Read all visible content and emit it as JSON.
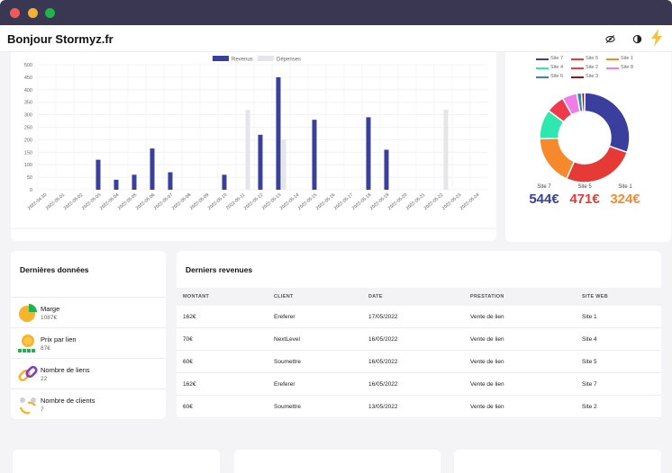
{
  "window": {
    "controls": [
      "close",
      "minimize",
      "maximize"
    ]
  },
  "header": {
    "greeting": "Bonjour Stormyz.fr",
    "icons": [
      "eye-slash-icon",
      "contrast-icon",
      "lightning-icon"
    ],
    "accent": "#f6c244"
  },
  "chart_data": [
    {
      "type": "bar",
      "title": "",
      "xlabel": "",
      "ylabel": "",
      "ylim": [
        0,
        500
      ],
      "yticks": [
        "0",
        "50",
        "100",
        "150",
        "200",
        "250",
        "300",
        "350",
        "400",
        "450",
        "500"
      ],
      "legend_position": "top-center",
      "grid": true,
      "categories": [
        "2022-04-30",
        "2022-05-01",
        "2022-05-02",
        "2022-05-03",
        "2022-05-04",
        "2022-05-05",
        "2022-05-06",
        "2022-05-07",
        "2022-05-08",
        "2022-05-09",
        "2022-05-10",
        "2022-05-11",
        "2022-05-12",
        "2022-05-13",
        "2022-05-14",
        "2022-05-15",
        "2022-05-16",
        "2022-05-17",
        "2022-05-18",
        "2022-05-19",
        "2022-05-20",
        "2022-05-21",
        "2022-05-22",
        "2022-05-23",
        "2022-05-24"
      ],
      "series": [
        {
          "name": "Revenus",
          "color": "#3a3f9e",
          "values": [
            0,
            0,
            0,
            120,
            40,
            60,
            165,
            70,
            0,
            0,
            60,
            0,
            220,
            450,
            0,
            280,
            0,
            0,
            290,
            160,
            0,
            0,
            0,
            0,
            0
          ]
        },
        {
          "name": "Dépenses",
          "color": "#e6e6ea",
          "values": [
            0,
            0,
            0,
            0,
            0,
            0,
            0,
            0,
            0,
            0,
            0,
            320,
            0,
            200,
            0,
            0,
            0,
            0,
            0,
            0,
            0,
            0,
            320,
            0,
            0
          ]
        }
      ]
    },
    {
      "type": "pie",
      "variant": "donut",
      "series": [
        {
          "name": "Site 7",
          "color": "#3a3f9e",
          "value": 544
        },
        {
          "name": "Site 5",
          "color": "#e53a35",
          "value": 471
        },
        {
          "name": "Site 1",
          "color": "#f7892d",
          "value": 324
        },
        {
          "name": "Site 4",
          "color": "#2ee8b0",
          "value": 190
        },
        {
          "name": "Site 2",
          "color": "#ee3a4a",
          "value": 120
        },
        {
          "name": "Site 8",
          "color": "#f07ce8",
          "value": 95
        },
        {
          "name": "Site 6",
          "color": "#3b82b0",
          "value": 30
        },
        {
          "name": "Site 3",
          "color": "#8b1d1d",
          "value": 20
        }
      ]
    }
  ],
  "donut_stats": [
    {
      "label": "Site 7",
      "value": "544€",
      "color": "#3a3f9e"
    },
    {
      "label": "Site 5",
      "value": "471€",
      "color": "#e53a35"
    },
    {
      "label": "Site 1",
      "value": "324€",
      "color": "#f7892d"
    }
  ],
  "latest_data": {
    "title": "Dernières données",
    "items": [
      {
        "label": "Marge",
        "value": "1087€",
        "icon": "pie-chart-icon"
      },
      {
        "label": "Prix par lien",
        "value": "87€",
        "icon": "coin-stack-icon"
      },
      {
        "label": "Nombre de liens",
        "value": "22",
        "icon": "chain-link-icon"
      },
      {
        "label": "Nombre de clients",
        "value": "7",
        "icon": "users-cycle-icon"
      }
    ]
  },
  "revenues": {
    "title": "Derniers revenues",
    "columns": [
      "MONTANT",
      "CLIENT",
      "DATE",
      "PRESTATION",
      "SITE WEB"
    ],
    "rows": [
      [
        "162€",
        "Ereferer",
        "17/05/2022",
        "Vente de lien",
        "Site 1"
      ],
      [
        "70€",
        "NextLevel",
        "16/05/2022",
        "Vente de lien",
        "Site 4"
      ],
      [
        "60€",
        "Soumettre",
        "16/05/2022",
        "Vente de lien",
        "Site 5"
      ],
      [
        "162€",
        "Ereferer",
        "16/05/2022",
        "Vente de lien",
        "Site 7"
      ],
      [
        "60€",
        "Soumettre",
        "13/05/2022",
        "Vente de lien",
        "Site 2"
      ]
    ]
  }
}
